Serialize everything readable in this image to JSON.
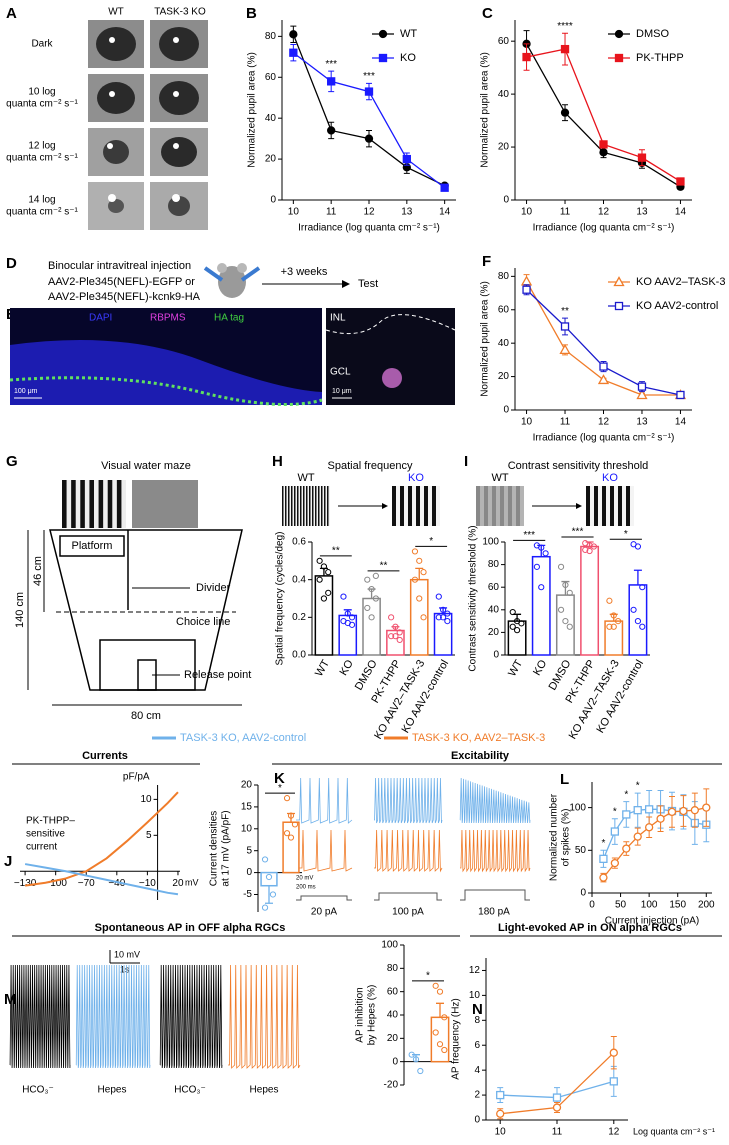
{
  "figure": {
    "legend": [
      {
        "name": "TASK-3 KO, AAV2-control",
        "color": "#6fb1ea"
      },
      {
        "name": "TASK-3 KO, AAV2–TASK-3",
        "color": "#f07c2a"
      }
    ],
    "sections": [
      "Currents",
      "Excitability",
      "Spontaneous AP in OFF alpha RGCs",
      "Light-evoked AP in ON alpha RGCs"
    ],
    "panel_a": {
      "panel": "A",
      "columns": [
        "WT",
        "TASK-3 KO"
      ],
      "rows": [
        [
          "Dark"
        ],
        [
          "10 log",
          "quanta cm⁻² s⁻¹"
        ],
        [
          "12 log",
          "quanta cm⁻² s⁻¹"
        ],
        [
          "14 log",
          "quanta cm⁻² s⁻¹"
        ]
      ]
    },
    "panel_d": {
      "panel": "D",
      "lines": [
        "Binocular intravitreal injection",
        "AAV2-Ple345(NEFL)-EGFP or",
        "AAV2-Ple345(NEFL)-kcnk9-HA"
      ],
      "step": "+3 weeks",
      "test": "Test"
    },
    "panel_e": {
      "panel": "E",
      "stains": [
        {
          "text": "DAPI",
          "color": "#3a3aff"
        },
        {
          "text": "RBPMS",
          "color": "#e040e0"
        },
        {
          "text": "HA tag",
          "color": "#40d040"
        }
      ],
      "layers": [
        "INL",
        "GCL"
      ],
      "scale_bars": [
        "100 μm",
        "10 μm"
      ]
    },
    "panel_g": {
      "panel": "G",
      "title": "Visual water maze",
      "platform": "Platform",
      "divider": "Divider",
      "choice": "Choice line",
      "release": "Release point",
      "d46": "46 cm",
      "d140": "140 cm",
      "d80": "80 cm"
    },
    "panel_k": {
      "panel": "K",
      "currents": [
        "20 pA",
        "100 pA",
        "180 pA"
      ],
      "scale": [
        "20 mV",
        "200 ms"
      ]
    },
    "panel_m": {
      "panel": "M",
      "traces": [
        "HCO₃⁻",
        "Hepes",
        "HCO₃⁻",
        "Hepes"
      ],
      "scale": [
        "10 mV",
        "1s"
      ]
    }
  },
  "chart_data": [
    {
      "type": "line",
      "panel": "B",
      "x": [
        10,
        11,
        12,
        13,
        14
      ],
      "xlim": [
        9.7,
        14.3
      ],
      "xticks": [
        10,
        11,
        12,
        13,
        14
      ],
      "ylim": [
        0,
        88
      ],
      "yticks": [
        0,
        20,
        40,
        60,
        80
      ],
      "xlabel": "Irradiance (log quanta cm⁻² s⁻¹)",
      "ylabel": "Normalized pupil area (%)",
      "legend": "upper right",
      "series": [
        {
          "name": "WT",
          "color": "#000000",
          "marker": "circle",
          "values": [
            81,
            34,
            30,
            16,
            7
          ],
          "errors": [
            4,
            4,
            4,
            3,
            1
          ]
        },
        {
          "name": "KO",
          "color": "#1a1aff",
          "marker": "square",
          "values": [
            72,
            58,
            53,
            20,
            6
          ],
          "errors": [
            4,
            5,
            4,
            3,
            1
          ]
        }
      ],
      "significance": [
        null,
        "***",
        "***",
        null,
        null
      ]
    },
    {
      "type": "line",
      "panel": "C",
      "x": [
        10,
        11,
        12,
        13,
        14
      ],
      "xlim": [
        9.7,
        14.3
      ],
      "xticks": [
        10,
        11,
        12,
        13,
        14
      ],
      "ylim": [
        0,
        68
      ],
      "yticks": [
        0,
        20,
        40,
        60
      ],
      "xlabel": "Irradiance (log quanta cm⁻² s⁻¹)",
      "ylabel": "Normalized pupil area (%)",
      "legend": "upper right",
      "series": [
        {
          "name": "DMSO",
          "color": "#000000",
          "marker": "circle",
          "values": [
            59,
            33,
            18,
            14,
            5
          ],
          "errors": [
            5,
            3,
            2,
            2,
            1
          ]
        },
        {
          "name": "PK-THPP",
          "color": "#e8141c",
          "marker": "square",
          "values": [
            54,
            57,
            21,
            16,
            7
          ],
          "errors": [
            5,
            6,
            1,
            3,
            1
          ]
        }
      ],
      "significance": [
        null,
        "****",
        null,
        null,
        null
      ]
    },
    {
      "type": "line",
      "panel": "F",
      "x": [
        10,
        11,
        12,
        13,
        14
      ],
      "xlim": [
        9.7,
        14.3
      ],
      "xticks": [
        10,
        11,
        12,
        13,
        14
      ],
      "ylim": [
        0,
        85
      ],
      "yticks": [
        0,
        20,
        40,
        60,
        80
      ],
      "xlabel": "Irradiance (log quanta cm⁻² s⁻¹)",
      "ylabel": "Normalized pupil area (%)",
      "legend": "upper right",
      "markers_open": true,
      "series": [
        {
          "name": "KO AAV2–TASK-3",
          "color": "#f07c2a",
          "marker": "triangle",
          "values": [
            77,
            36,
            18,
            9,
            9
          ],
          "errors": [
            4,
            3,
            1,
            1,
            1
          ]
        },
        {
          "name": "KO AAV2-control",
          "color": "#1a1acc",
          "marker": "square",
          "values": [
            72,
            50,
            26,
            14,
            9
          ],
          "errors": [
            3,
            5,
            3,
            3,
            1
          ]
        }
      ],
      "significance": [
        null,
        "**",
        null,
        null,
        null
      ]
    },
    {
      "type": "bar",
      "panel": "H",
      "title": "Spatial frequency",
      "stimuli": [
        {
          "text": "WT",
          "color": "#000000"
        },
        {
          "text": "KO",
          "color": "#1a1aff"
        }
      ],
      "categories": [
        "WT",
        "KO",
        "DMSO",
        "PK-THPP",
        "KO AAV2–TASK-3",
        "KO AAV2-control"
      ],
      "colors": [
        "#000000",
        "#1a1aff",
        "#888888",
        "#f0506e",
        "#f07c2a",
        "#1a1aff"
      ],
      "values": [
        0.42,
        0.21,
        0.3,
        0.13,
        0.4,
        0.22
      ],
      "errors": [
        0.04,
        0.03,
        0.05,
        0.02,
        0.06,
        0.03
      ],
      "points": [
        [
          0.5,
          0.47,
          0.44,
          0.4,
          0.3,
          0.33
        ],
        [
          0.31,
          0.22,
          0.2,
          0.18,
          0.17,
          0.16
        ],
        [
          0.4,
          0.35,
          0.3,
          0.25,
          0.2,
          0.42
        ],
        [
          0.2,
          0.15,
          0.12,
          0.1,
          0.1,
          0.08
        ],
        [
          0.55,
          0.5,
          0.44,
          0.4,
          0.3,
          0.2
        ],
        [
          0.31,
          0.24,
          0.22,
          0.2,
          0.2,
          0.18
        ]
      ],
      "comparisons": [
        {
          "between": [
            0,
            1
          ],
          "text": "**"
        },
        {
          "between": [
            2,
            3
          ],
          "text": "**"
        },
        {
          "between": [
            4,
            5
          ],
          "text": "*"
        }
      ],
      "ylim": [
        0,
        0.6
      ],
      "yticks": [
        {
          "value": 0,
          "label": "0.0"
        },
        0.2,
        0.4,
        0.6
      ],
      "ylabel": "Spatial frequency (cycles/deg)"
    },
    {
      "type": "bar",
      "panel": "I",
      "title": "Contrast sensitivity threshold",
      "stimuli": [
        {
          "text": "WT",
          "color": "#000000"
        },
        {
          "text": "KO",
          "color": "#1a1aff"
        }
      ],
      "categories": [
        "WT",
        "KO",
        "DMSO",
        "PK-THPP",
        "KO AAV2–TASK-3",
        "KO AAV2-control"
      ],
      "colors": [
        "#000000",
        "#1a1aff",
        "#888888",
        "#f0506e",
        "#f07c2a",
        "#1a1aff"
      ],
      "values": [
        30,
        87,
        53,
        96,
        30,
        62
      ],
      "errors": [
        6,
        10,
        12,
        4,
        6,
        13
      ],
      "points": [
        [
          38,
          30,
          28,
          25,
          22
        ],
        [
          97,
          95,
          90,
          78,
          60
        ],
        [
          78,
          62,
          55,
          40,
          30,
          25
        ],
        [
          99,
          97,
          96,
          93,
          92
        ],
        [
          48,
          35,
          30,
          25,
          25
        ],
        [
          98,
          96,
          60,
          40,
          30,
          25
        ]
      ],
      "comparisons": [
        {
          "between": [
            0,
            1
          ],
          "text": "***"
        },
        {
          "between": [
            2,
            3
          ],
          "text": "***"
        },
        {
          "between": [
            4,
            5
          ],
          "text": "*"
        }
      ],
      "ylim": [
        0,
        100
      ],
      "yticks": [
        0,
        20,
        40,
        60,
        80,
        100
      ],
      "ylabel": "Contrast sensitivity threshold (%)"
    },
    {
      "type": "line",
      "panel": "J",
      "axes_at_origin": true,
      "x": [
        -130,
        -110,
        -90,
        -70,
        -50,
        -30,
        -10,
        10,
        20
      ],
      "xlim": [
        -135,
        22
      ],
      "xticks": [
        {
          "value": -130,
          "label": "−130"
        },
        {
          "value": -100,
          "label": "−100"
        },
        {
          "value": -70,
          "label": "−70"
        },
        {
          "value": -40,
          "label": "−40"
        },
        {
          "value": -10,
          "label": "−10"
        },
        20
      ],
      "ylim": [
        -4,
        12
      ],
      "yticks": [
        5,
        10
      ],
      "xlabel": "mV",
      "ylabel": "pF/pA",
      "annotation": [
        "PK-THPP–",
        "sensitive",
        "current"
      ],
      "series": [
        {
          "color": "#f07c2a",
          "values": [
            -2,
            -1.6,
            -1,
            0,
            1.8,
            4.2,
            6.8,
            9.5,
            11
          ]
        },
        {
          "color": "#6fb1ea",
          "values": [
            1,
            0.5,
            0,
            -0.6,
            -1.2,
            -1.8,
            -2.4,
            -3,
            -3.2
          ]
        }
      ]
    },
    {
      "type": "bar",
      "categories": [
        null,
        null
      ],
      "colors": [
        "#6fb1ea",
        "#f07c2a"
      ],
      "values": [
        -3,
        11.5
      ],
      "errors": [
        4,
        2
      ],
      "points": [
        [
          3,
          -1,
          -5,
          -8
        ],
        [
          17,
          13,
          11,
          9,
          8
        ]
      ],
      "comparisons": [
        {
          "between": [
            0,
            1
          ],
          "text": "*"
        }
      ],
      "ylim": [
        -9,
        20
      ],
      "yticks": [
        -5,
        0,
        5,
        10,
        15,
        20
      ],
      "ylabel": [
        "Current densities",
        "at 17 mV (pA/pF)"
      ]
    },
    {
      "type": "line",
      "panel": "L",
      "x": [
        20,
        40,
        60,
        80,
        100,
        120,
        140,
        160,
        180,
        200
      ],
      "xlim": [
        0,
        210
      ],
      "xticks": [
        0,
        50,
        100,
        150,
        200
      ],
      "ylim": [
        0,
        130
      ],
      "yticks": [
        0,
        50,
        100
      ],
      "xlabel": "Current injection (pA)",
      "ylabel": [
        "Normalized number",
        "of spikes (%)"
      ],
      "markers_open": true,
      "series": [
        {
          "color": "#6fb1ea",
          "marker": "square",
          "values": [
            40,
            72,
            92,
            97,
            98,
            98,
            96,
            95,
            82,
            80
          ],
          "errors": [
            10,
            15,
            15,
            20,
            22,
            22,
            22,
            20,
            25,
            20
          ]
        },
        {
          "color": "#f07c2a",
          "marker": "circle",
          "values": [
            18,
            35,
            52,
            66,
            77,
            87,
            95,
            96,
            97,
            100
          ],
          "errors": [
            5,
            6,
            8,
            10,
            12,
            15,
            18,
            18,
            20,
            22
          ]
        }
      ],
      "significance": [
        "*",
        "*",
        "*",
        "*",
        null,
        null,
        null,
        null,
        null,
        null
      ]
    },
    {
      "type": "bar",
      "categories": [
        null,
        null
      ],
      "colors": [
        "#6fb1ea",
        "#f07c2a"
      ],
      "values": [
        0,
        38
      ],
      "errors": [
        6,
        12
      ],
      "points": [
        [
          6,
          2,
          -8
        ],
        [
          65,
          60,
          38,
          25,
          15,
          10
        ]
      ],
      "comparisons": [
        {
          "between": [
            0,
            1
          ],
          "text": "*"
        }
      ],
      "ylim": [
        -20,
        100
      ],
      "yticks": [
        -20,
        0,
        20,
        40,
        60,
        80,
        100
      ],
      "ylabel": [
        "AP inhibition",
        "by Hepes (%)"
      ]
    },
    {
      "type": "line",
      "panel": "N",
      "x": [
        10,
        11,
        12
      ],
      "xlim": [
        9.75,
        12.25
      ],
      "xticks": [
        10,
        11,
        12
      ],
      "ylim": [
        0,
        13
      ],
      "yticks": [
        0,
        2,
        4,
        6,
        8,
        10,
        12
      ],
      "xlabel": "Log quanta cm⁻² s⁻¹",
      "ylabel": "AP frequency (Hz)",
      "markers_open": true,
      "series": [
        {
          "color": "#6fb1ea",
          "marker": "square",
          "values": [
            2,
            1.8,
            3.1
          ],
          "errors": [
            0.6,
            0.8,
            1.2
          ]
        },
        {
          "color": "#f07c2a",
          "marker": "circle",
          "values": [
            0.5,
            1,
            5.4
          ],
          "errors": [
            0.4,
            0.4,
            1.3
          ]
        }
      ]
    }
  ]
}
